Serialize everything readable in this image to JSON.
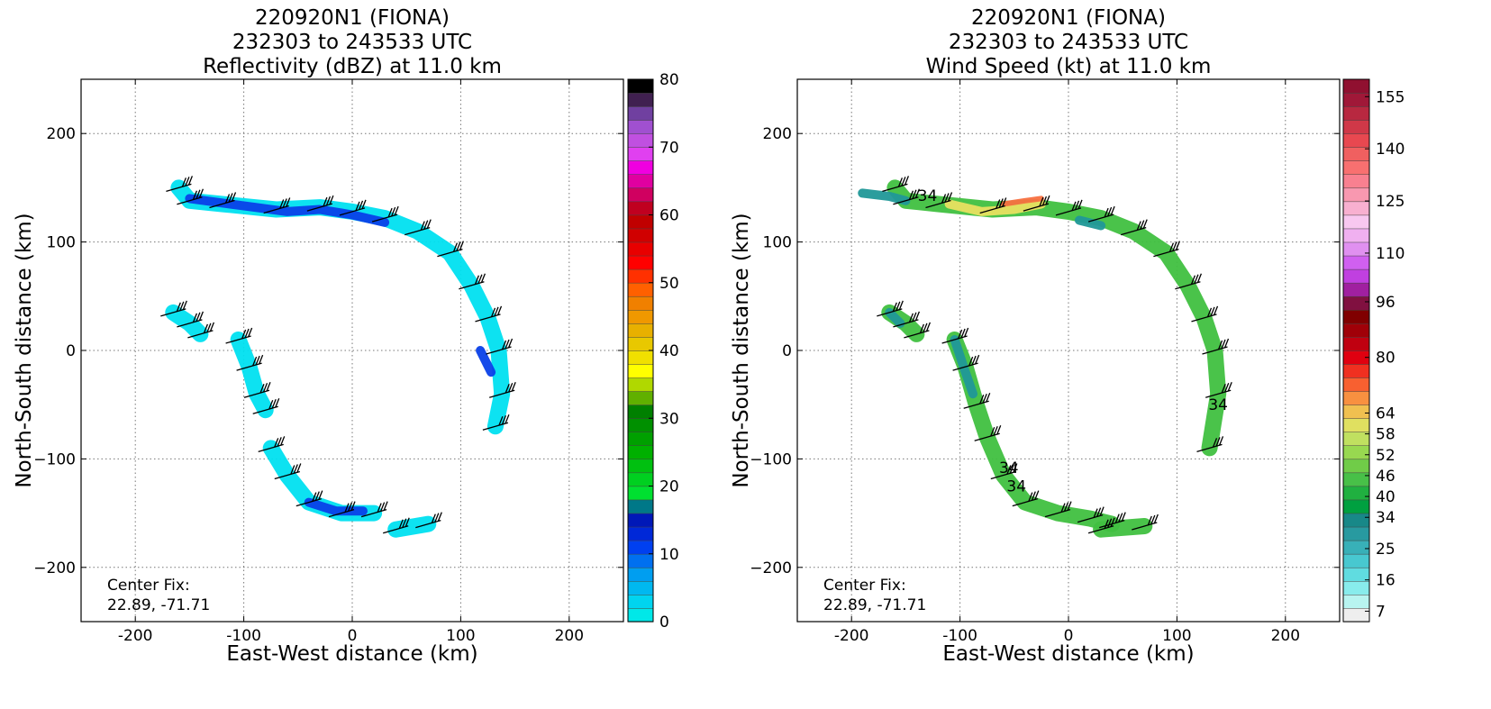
{
  "chart_data": [
    {
      "type": "heatmap",
      "title_lines": [
        "220920N1 (FIONA)",
        "232303 to 243533 UTC",
        "Reflectivity (dBZ) at 11.0 km"
      ],
      "xlabel": "East-West distance (km)",
      "ylabel": "North-South distance (km)",
      "xlim": [
        -250,
        250
      ],
      "ylim": [
        -250,
        250
      ],
      "xticks": [
        -200,
        -100,
        0,
        100,
        200
      ],
      "yticks": [
        -200,
        -100,
        0,
        100,
        200
      ],
      "grid": true,
      "annotation": [
        "Center Fix:",
        "22.89, -71.71"
      ],
      "colorbar": {
        "ticks": [
          0,
          10,
          20,
          30,
          40,
          50,
          60,
          70,
          80
        ],
        "range": [
          0,
          80
        ],
        "colors": [
          "#00e8e8",
          "#00d4f0",
          "#00b8f0",
          "#009ef0",
          "#0070f0",
          "#0040f0",
          "#0028d8",
          "#0018b8",
          "#007888",
          "#00e030",
          "#00d020",
          "#00c010",
          "#00b000",
          "#00a000",
          "#009000",
          "#008000",
          "#60b000",
          "#b0d800",
          "#ffff00",
          "#f0e000",
          "#e8c800",
          "#e8b000",
          "#f09800",
          "#f08000",
          "#ff6000",
          "#ff3000",
          "#ff0000",
          "#e80000",
          "#d00000",
          "#c00000",
          "#c00020",
          "#d00060",
          "#e000a0",
          "#f000e0",
          "#e040f0",
          "#c050e0",
          "#a050d0",
          "#7040a0",
          "#402050",
          "#000000"
        ]
      },
      "barbs_label": null,
      "series": [
        {
          "band": "light-cyan",
          "color": "#00e0f0",
          "polylines": [
            [
              [
                -160,
                150
              ],
              [
                -150,
                138
              ],
              [
                -120,
                135
              ],
              [
                -70,
                130
              ],
              [
                -30,
                132
              ],
              [
                0,
                128
              ],
              [
                30,
                122
              ],
              [
                60,
                110
              ],
              [
                90,
                90
              ],
              [
                110,
                60
              ],
              [
                125,
                30
              ],
              [
                135,
                0
              ],
              [
                138,
                -40
              ],
              [
                132,
                -70
              ]
            ],
            [
              [
                -165,
                35
              ],
              [
                -150,
                25
              ],
              [
                -140,
                15
              ]
            ],
            [
              [
                -105,
                10
              ],
              [
                -95,
                -15
              ],
              [
                -88,
                -40
              ],
              [
                -80,
                -55
              ]
            ],
            [
              [
                -75,
                -90
              ],
              [
                -60,
                -115
              ],
              [
                -40,
                -140
              ],
              [
                -10,
                -150
              ],
              [
                20,
                -150
              ]
            ],
            [
              [
                40,
                -165
              ],
              [
                70,
                -160
              ]
            ]
          ]
        },
        {
          "band": "blue",
          "color": "#0a40e8",
          "polylines": [
            [
              [
                -150,
                140
              ],
              [
                -120,
                136
              ],
              [
                -90,
                132
              ],
              [
                -60,
                128
              ],
              [
                -30,
                130
              ],
              [
                0,
                125
              ],
              [
                30,
                118
              ]
            ],
            [
              [
                -40,
                -140
              ],
              [
                -15,
                -148
              ],
              [
                10,
                -148
              ]
            ],
            [
              [
                118,
                0
              ],
              [
                128,
                -20
              ]
            ]
          ]
        }
      ]
    },
    {
      "type": "heatmap",
      "title_lines": [
        "220920N1 (FIONA)",
        "232303 to 243533 UTC",
        "Wind Speed (kt) at 11.0 km"
      ],
      "xlabel": "East-West distance (km)",
      "ylabel": "North-South distance (km)",
      "xlim": [
        -250,
        250
      ],
      "ylim": [
        -250,
        250
      ],
      "xticks": [
        -200,
        -100,
        0,
        100,
        200
      ],
      "yticks": [
        -200,
        -100,
        0,
        100,
        200
      ],
      "grid": true,
      "annotation": [
        "Center Fix:",
        "22.89, -71.71"
      ],
      "contour_labels": [
        {
          "text": "34",
          "x": -130,
          "y": 138
        },
        {
          "text": "34",
          "x": 138,
          "y": -55
        },
        {
          "text": "34",
          "x": -55,
          "y": -113
        },
        {
          "text": "34",
          "x": -48,
          "y": -130
        }
      ],
      "colorbar": {
        "ticks": [
          7,
          16,
          25,
          34,
          40,
          46,
          52,
          58,
          64,
          80,
          96,
          110,
          125,
          140,
          155
        ],
        "range": [
          4,
          160
        ],
        "colors": [
          "#eeeeee",
          "#b8f4f0",
          "#88ecec",
          "#60dce0",
          "#48c8d0",
          "#38b0b8",
          "#289aa0",
          "#188888",
          "#00a040",
          "#20b040",
          "#48c048",
          "#70cc48",
          "#98d850",
          "#c0e060",
          "#e0e060",
          "#f0c050",
          "#f89040",
          "#f86030",
          "#f03020",
          "#e00010",
          "#c00010",
          "#a00008",
          "#800000",
          "#801040",
          "#a020a0",
          "#c040e0",
          "#d060f0",
          "#e090f0",
          "#f0b0f0",
          "#f8c8f0",
          "#f8b0d0",
          "#f898b0",
          "#f88090",
          "#f87070",
          "#f06060",
          "#e84850",
          "#d03848",
          "#b82840",
          "#a01838",
          "#901030"
        ]
      },
      "series": [
        {
          "band": "green",
          "color": "#40c040",
          "polylines": [
            [
              [
                -160,
                150
              ],
              [
                -150,
                138
              ],
              [
                -120,
                135
              ],
              [
                -70,
                130
              ],
              [
                -30,
                132
              ],
              [
                0,
                128
              ],
              [
                30,
                122
              ],
              [
                60,
                110
              ],
              [
                90,
                90
              ],
              [
                110,
                60
              ],
              [
                125,
                30
              ],
              [
                135,
                0
              ],
              [
                138,
                -40
              ],
              [
                130,
                -90
              ]
            ],
            [
              [
                -165,
                35
              ],
              [
                -150,
                25
              ],
              [
                -140,
                15
              ]
            ],
            [
              [
                -105,
                10
              ],
              [
                -95,
                -15
              ],
              [
                -85,
                -50
              ],
              [
                -75,
                -80
              ],
              [
                -60,
                -115
              ],
              [
                -40,
                -140
              ],
              [
                -10,
                -150
              ],
              [
                20,
                -155
              ],
              [
                40,
                -160
              ]
            ],
            [
              [
                30,
                -165
              ],
              [
                70,
                -162
              ]
            ]
          ]
        },
        {
          "band": "teal",
          "color": "#209898",
          "polylines": [
            [
              [
                -190,
                145
              ],
              [
                -165,
                142
              ],
              [
                -150,
                138
              ]
            ],
            [
              [
                -105,
                10
              ],
              [
                -95,
                -20
              ],
              [
                -88,
                -40
              ]
            ],
            [
              [
                -165,
                35
              ],
              [
                -155,
                25
              ]
            ],
            [
              [
                10,
                120
              ],
              [
                30,
                115
              ]
            ]
          ]
        },
        {
          "band": "yellow",
          "color": "#e8e060",
          "polylines": [
            [
              [
                -110,
                135
              ],
              [
                -80,
                128
              ],
              [
                -50,
                130
              ],
              [
                -25,
                135
              ]
            ]
          ]
        },
        {
          "band": "orange-red",
          "color": "#f87040",
          "polylines": [
            [
              [
                -60,
                135
              ],
              [
                -40,
                138
              ],
              [
                -25,
                140
              ]
            ]
          ]
        }
      ]
    }
  ]
}
